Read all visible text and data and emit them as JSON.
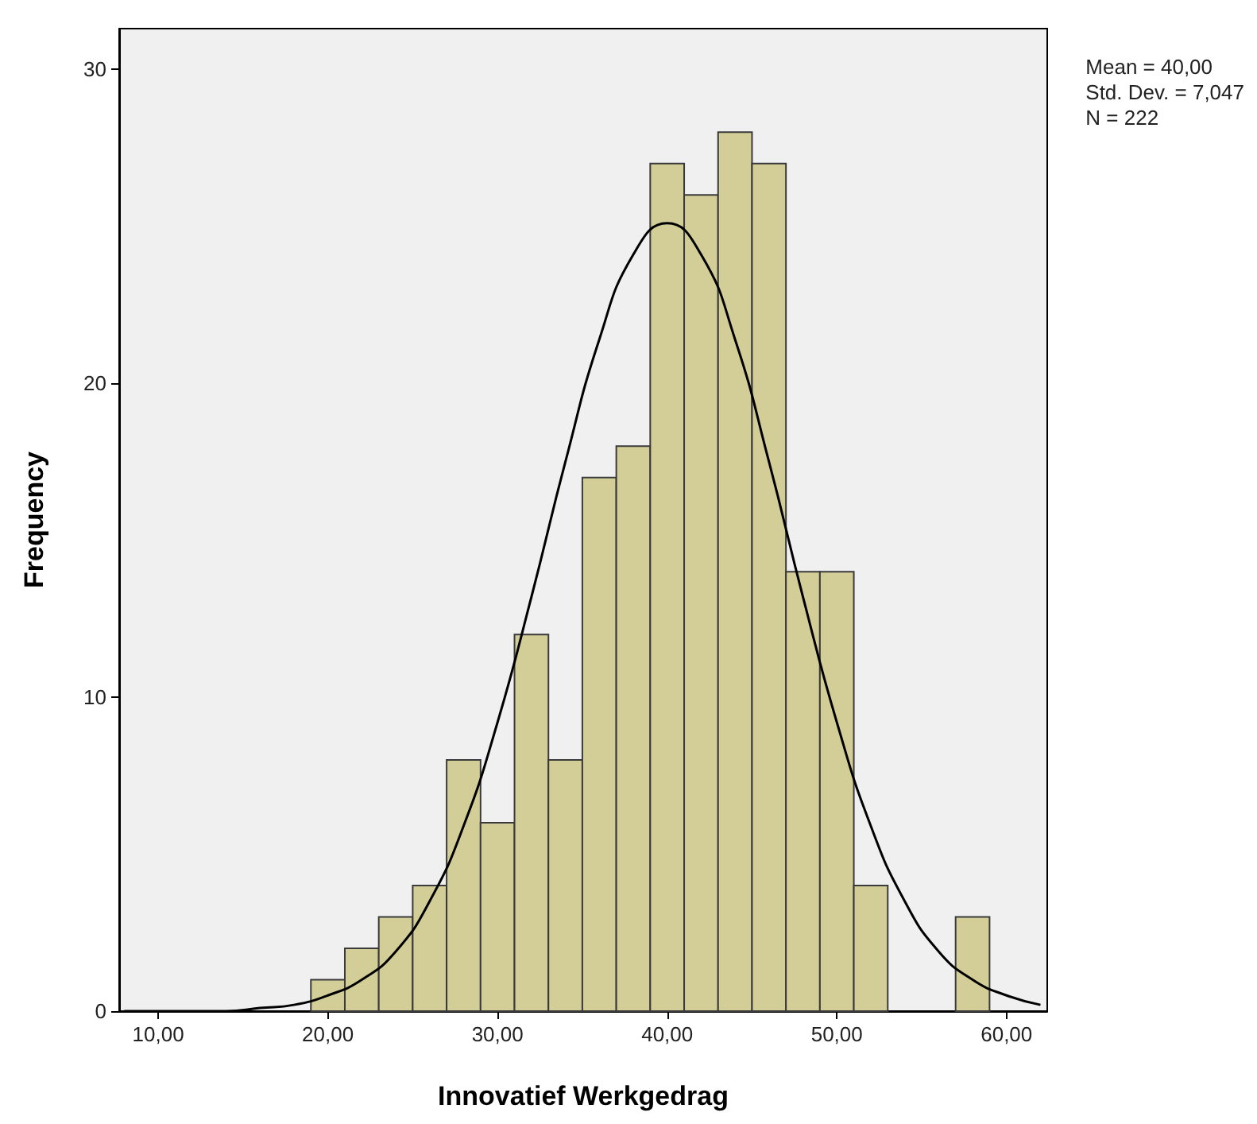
{
  "chart_data": {
    "type": "histogram",
    "xlabel": "Innovatief Werkgedrag",
    "ylabel": "Frequency",
    "bins": [
      19,
      21,
      23,
      25,
      27,
      29,
      31,
      33,
      35,
      37,
      39,
      41,
      43,
      45,
      47,
      49,
      51,
      53,
      55,
      57,
      59
    ],
    "values": [
      1,
      2,
      3,
      4,
      8,
      6,
      12,
      8,
      17,
      18,
      27,
      26,
      28,
      27,
      14,
      14,
      4,
      0,
      0,
      3
    ],
    "color": "#d3ce97",
    "series": [
      {
        "type": "line",
        "color": "#000000",
        "x": [
          8,
          10,
          12,
          14,
          16,
          18,
          20,
          22,
          24,
          26,
          28,
          30,
          32,
          34,
          36,
          38,
          40,
          42,
          44,
          46,
          48,
          50,
          52,
          54,
          56,
          58,
          60,
          62
        ],
        "values": [
          0,
          0,
          0,
          0,
          0.1,
          0.2,
          0.5,
          1,
          1.9,
          3.5,
          5.9,
          9.2,
          13.2,
          17.5,
          21.4,
          24.1,
          25.1,
          24.1,
          21.4,
          17.5,
          13.2,
          9.2,
          5.9,
          3.5,
          1.9,
          1,
          0.5,
          0.2
        ]
      }
    ],
    "xlim": [
      7.7,
      62.4
    ],
    "xticks": [
      {
        "value": 10,
        "label": "10,00"
      },
      {
        "value": 20,
        "label": "20,00"
      },
      {
        "value": 30,
        "label": "30,00"
      },
      {
        "value": 40,
        "label": "40,00"
      },
      {
        "value": 50,
        "label": "50,00"
      },
      {
        "value": 60,
        "label": "60,00"
      }
    ],
    "ylim": [
      0,
      31.3
    ],
    "yticks": [
      0,
      10,
      20,
      30
    ],
    "marker": "none",
    "grid": false,
    "annotations": [
      "Mean = 40,00",
      "Std. Dev. = 7,047",
      "N = 222"
    ]
  }
}
